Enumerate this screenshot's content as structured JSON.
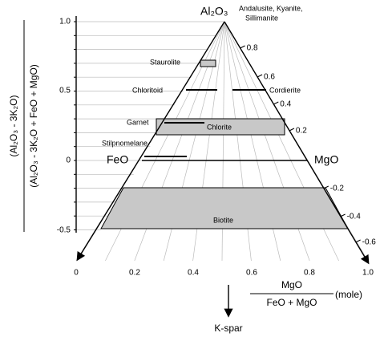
{
  "diagram": {
    "apex_label": "Al₂O₃",
    "apex_note": [
      "Andalusite, Kyanite,",
      "Sillimanite"
    ],
    "left_corner": "FeO",
    "right_corner": "MgO",
    "bottom_pole": "K-spar",
    "y_axis": {
      "numerator": "(Al₂O₃ - 3K₂O)",
      "denominator": "(Al₂O₃ - 3K₂O + FeO + MgO)",
      "ticks": [
        "1.0",
        "0.5",
        "0",
        "-0.5"
      ]
    },
    "x_axis": {
      "numerator": "MgO",
      "denominator": "FeO + MgO",
      "unit": "(mole)",
      "ticks": [
        "0",
        "0.2",
        "0.4",
        "0.6",
        "0.8",
        "1.0"
      ]
    },
    "side_ticks": [
      "0.8",
      "0.6",
      "0.4",
      "0.2",
      "-0.2",
      "-0.4",
      "-0.6"
    ],
    "minerals": [
      "Staurolite",
      "Chloritoid",
      "Cordierite",
      "Garnet",
      "Chlorite",
      "Stilpnomelane",
      "Biotite"
    ]
  }
}
